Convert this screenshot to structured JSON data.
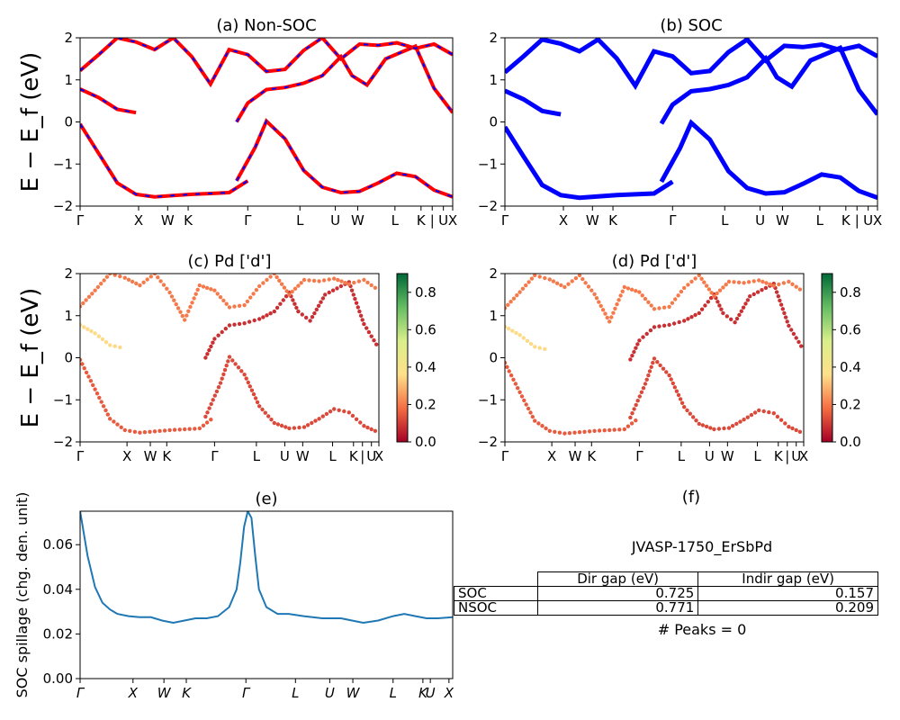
{
  "chart_data": [
    {
      "id": "a",
      "type": "line",
      "title": "(a) Non-SOC",
      "ylabel": "E − E_f (eV)",
      "ylim": [
        -2,
        2
      ],
      "yticks": [
        "2",
        "1",
        "0",
        "−1",
        "−2"
      ],
      "kpath": [
        "Γ",
        "X",
        "W",
        "K",
        "Γ",
        "L",
        "U",
        "W",
        "L",
        "K",
        "|",
        "U",
        "X"
      ],
      "style": "red solid with blue dashed overlay (two calculations coincide)",
      "series": [
        {
          "x": [
            0.0,
            0.05,
            0.1,
            0.15,
            0.2,
            0.25,
            0.3,
            0.35,
            0.4,
            0.45
          ],
          "y": [
            -0.05,
            -0.75,
            -1.45,
            -1.72,
            -1.78,
            -1.75,
            -1.72,
            -1.7,
            -1.68,
            -1.4
          ]
        },
        {
          "x": [
            0.42,
            0.47,
            0.5,
            0.55,
            0.6,
            0.65,
            0.7,
            0.75,
            0.8,
            0.85,
            0.9,
            0.95,
            1.0
          ],
          "y": [
            -1.4,
            -0.6,
            0.02,
            -0.4,
            -1.15,
            -1.55,
            -1.68,
            -1.65,
            -1.45,
            -1.22,
            -1.3,
            -1.62,
            -1.78
          ]
        },
        {
          "x": [
            0.0,
            0.05,
            0.1,
            0.15
          ],
          "y": [
            0.78,
            0.58,
            0.3,
            0.22
          ]
        },
        {
          "x": [
            0.42,
            0.45,
            0.5,
            0.55,
            0.6,
            0.65,
            0.7,
            0.73,
            0.77,
            0.82,
            0.9,
            0.95,
            1.0
          ],
          "y": [
            0.0,
            0.45,
            0.77,
            0.82,
            0.92,
            1.1,
            1.55,
            1.1,
            0.88,
            1.5,
            1.8,
            0.8,
            0.22
          ]
        },
        {
          "x": [
            0.0,
            0.05,
            0.1,
            0.15,
            0.2,
            0.25,
            0.3,
            0.35,
            0.4,
            0.45,
            0.5,
            0.55,
            0.6,
            0.65,
            0.7,
            0.75,
            0.8,
            0.85,
            0.9,
            0.95,
            1.0
          ],
          "y": [
            1.22,
            1.6,
            2.0,
            1.9,
            1.72,
            2.0,
            1.55,
            0.9,
            1.72,
            1.6,
            1.2,
            1.25,
            1.7,
            2.0,
            1.5,
            1.85,
            1.82,
            1.88,
            1.75,
            1.85,
            1.6
          ]
        }
      ]
    },
    {
      "id": "b",
      "type": "line",
      "title": "(b) SOC",
      "ylim": [
        -2,
        2
      ],
      "yticks": [
        "2",
        "1",
        "0",
        "−1",
        "−2"
      ],
      "kpath": [
        "Γ",
        "X",
        "W",
        "K",
        "Γ",
        "L",
        "U",
        "W",
        "L",
        "K",
        "|",
        "U",
        "X"
      ],
      "style": "blue thick",
      "series": [
        {
          "x": [
            0.0,
            0.05,
            0.1,
            0.15,
            0.2,
            0.25,
            0.3,
            0.35,
            0.4,
            0.45
          ],
          "y": [
            -0.12,
            -0.82,
            -1.5,
            -1.74,
            -1.8,
            -1.77,
            -1.74,
            -1.72,
            -1.7,
            -1.42
          ]
        },
        {
          "x": [
            0.42,
            0.47,
            0.5,
            0.55,
            0.6,
            0.65,
            0.7,
            0.75,
            0.8,
            0.85,
            0.9,
            0.95,
            1.0
          ],
          "y": [
            -1.42,
            -0.62,
            -0.02,
            -0.42,
            -1.17,
            -1.57,
            -1.7,
            -1.67,
            -1.47,
            -1.25,
            -1.32,
            -1.64,
            -1.8
          ]
        },
        {
          "x": [
            0.0,
            0.05,
            0.1,
            0.15
          ],
          "y": [
            0.74,
            0.54,
            0.26,
            0.18
          ]
        },
        {
          "x": [
            0.42,
            0.45,
            0.5,
            0.55,
            0.6,
            0.65,
            0.7,
            0.73,
            0.77,
            0.82,
            0.9,
            0.95,
            1.0
          ],
          "y": [
            -0.04,
            0.41,
            0.73,
            0.78,
            0.88,
            1.06,
            1.51,
            1.06,
            0.84,
            1.46,
            1.76,
            0.76,
            0.18
          ]
        },
        {
          "x": [
            0.0,
            0.05,
            0.1,
            0.15,
            0.2,
            0.25,
            0.3,
            0.35,
            0.4,
            0.45,
            0.5,
            0.55,
            0.6,
            0.65,
            0.7,
            0.75,
            0.8,
            0.85,
            0.9,
            0.95,
            1.0
          ],
          "y": [
            1.18,
            1.56,
            1.96,
            1.86,
            1.68,
            1.96,
            1.51,
            0.86,
            1.68,
            1.56,
            1.16,
            1.21,
            1.66,
            1.96,
            1.46,
            1.81,
            1.78,
            1.84,
            1.71,
            1.81,
            1.56
          ]
        }
      ]
    },
    {
      "id": "c",
      "type": "scatter",
      "title": "(c)  Pd ['d']",
      "ylabel": "E − E_f (eV)",
      "ylim": [
        -2,
        2
      ],
      "yticks": [
        "2",
        "1",
        "0",
        "−1",
        "−2"
      ],
      "kpath": [
        "Γ",
        "X",
        "W",
        "K",
        "Γ",
        "L",
        "U",
        "W",
        "L",
        "K",
        "|",
        "U",
        "X"
      ],
      "colorbar": {
        "cmap": "RdYlGn",
        "range": [
          0,
          0.9
        ],
        "ticks": [
          "0.0",
          "0.2",
          "0.4",
          "0.6",
          "0.8"
        ]
      },
      "series": [
        {
          "weight": 0.15,
          "x": [
            0.0,
            0.05,
            0.1,
            0.15,
            0.2,
            0.25,
            0.3,
            0.35,
            0.4,
            0.45
          ],
          "y": [
            -0.05,
            -0.75,
            -1.45,
            -1.72,
            -1.78,
            -1.75,
            -1.72,
            -1.7,
            -1.68,
            -1.4
          ]
        },
        {
          "weight": 0.12,
          "x": [
            0.42,
            0.47,
            0.5,
            0.55,
            0.6,
            0.65,
            0.7,
            0.75,
            0.8,
            0.85,
            0.9,
            0.95,
            1.0
          ],
          "y": [
            -1.4,
            -0.6,
            0.02,
            -0.4,
            -1.15,
            -1.55,
            -1.68,
            -1.65,
            -1.45,
            -1.22,
            -1.3,
            -1.62,
            -1.78
          ]
        },
        {
          "weight": 0.35,
          "x": [
            0.0,
            0.05,
            0.1,
            0.15
          ],
          "y": [
            0.78,
            0.58,
            0.3,
            0.22
          ]
        },
        {
          "weight": 0.08,
          "x": [
            0.42,
            0.45,
            0.5,
            0.55,
            0.6,
            0.65,
            0.7,
            0.73,
            0.77,
            0.82,
            0.9,
            0.95,
            1.0
          ],
          "y": [
            0.0,
            0.45,
            0.77,
            0.82,
            0.92,
            1.1,
            1.55,
            1.1,
            0.88,
            1.5,
            1.8,
            0.8,
            0.22
          ]
        },
        {
          "weight": 0.2,
          "x": [
            0.0,
            0.05,
            0.1,
            0.15,
            0.2,
            0.25,
            0.3,
            0.35,
            0.4,
            0.45,
            0.5,
            0.55,
            0.6,
            0.65,
            0.7,
            0.75,
            0.8,
            0.85,
            0.9,
            0.95,
            1.0
          ],
          "y": [
            1.22,
            1.6,
            2.0,
            1.9,
            1.72,
            2.0,
            1.55,
            0.9,
            1.72,
            1.6,
            1.2,
            1.25,
            1.7,
            2.0,
            1.5,
            1.85,
            1.82,
            1.88,
            1.75,
            1.85,
            1.6
          ]
        }
      ]
    },
    {
      "id": "d",
      "type": "scatter",
      "title": "(d) Pd ['d']",
      "ylim": [
        -2,
        2
      ],
      "yticks": [
        "2",
        "1",
        "0",
        "−1",
        "−2"
      ],
      "kpath": [
        "Γ",
        "X",
        "W",
        "K",
        "Γ",
        "L",
        "U",
        "W",
        "L",
        "K",
        "|",
        "U",
        "X"
      ],
      "colorbar": {
        "cmap": "RdYlGn",
        "range": [
          0,
          0.9
        ],
        "ticks": [
          "0.0",
          "0.2",
          "0.4",
          "0.6",
          "0.8"
        ]
      },
      "series": [
        {
          "weight": 0.15,
          "x": [
            0.0,
            0.05,
            0.1,
            0.15,
            0.2,
            0.25,
            0.3,
            0.35,
            0.4,
            0.45
          ],
          "y": [
            -0.12,
            -0.82,
            -1.5,
            -1.74,
            -1.8,
            -1.77,
            -1.74,
            -1.72,
            -1.7,
            -1.42
          ]
        },
        {
          "weight": 0.12,
          "x": [
            0.42,
            0.47,
            0.5,
            0.55,
            0.6,
            0.65,
            0.7,
            0.75,
            0.8,
            0.85,
            0.9,
            0.95,
            1.0
          ],
          "y": [
            -1.42,
            -0.62,
            -0.02,
            -0.42,
            -1.17,
            -1.57,
            -1.7,
            -1.67,
            -1.47,
            -1.25,
            -1.32,
            -1.64,
            -1.8
          ]
        },
        {
          "weight": 0.35,
          "x": [
            0.0,
            0.05,
            0.1,
            0.15
          ],
          "y": [
            0.74,
            0.54,
            0.26,
            0.18
          ]
        },
        {
          "weight": 0.08,
          "x": [
            0.42,
            0.45,
            0.5,
            0.55,
            0.6,
            0.65,
            0.7,
            0.73,
            0.77,
            0.82,
            0.9,
            0.95,
            1.0
          ],
          "y": [
            -0.04,
            0.41,
            0.73,
            0.78,
            0.88,
            1.06,
            1.51,
            1.06,
            0.84,
            1.46,
            1.76,
            0.76,
            0.18
          ]
        },
        {
          "weight": 0.2,
          "x": [
            0.0,
            0.05,
            0.1,
            0.15,
            0.2,
            0.25,
            0.3,
            0.35,
            0.4,
            0.45,
            0.5,
            0.55,
            0.6,
            0.65,
            0.7,
            0.75,
            0.8,
            0.85,
            0.9,
            0.95,
            1.0
          ],
          "y": [
            1.18,
            1.56,
            1.96,
            1.86,
            1.68,
            1.96,
            1.51,
            0.86,
            1.68,
            1.56,
            1.16,
            1.21,
            1.66,
            1.96,
            1.46,
            1.81,
            1.78,
            1.84,
            1.71,
            1.81,
            1.56
          ]
        }
      ]
    },
    {
      "id": "e",
      "type": "line",
      "title": "(e)",
      "ylabel": "SOC spillage (chg. den. unit)",
      "ylim": [
        0,
        0.075
      ],
      "yticks": [
        "0.06",
        "0.04",
        "0.02",
        "0.00"
      ],
      "kpath": [
        "Γ",
        "X",
        "W",
        "K",
        "Γ",
        "L",
        "U",
        "W",
        "L",
        "K",
        "U",
        "X"
      ],
      "series": [
        {
          "x": [
            0.0,
            0.02,
            0.04,
            0.06,
            0.08,
            0.1,
            0.13,
            0.16,
            0.19,
            0.22,
            0.25,
            0.28,
            0.31,
            0.34,
            0.37,
            0.4,
            0.42,
            0.43,
            0.44,
            0.45,
            0.46,
            0.47,
            0.48,
            0.5,
            0.53,
            0.56,
            0.6,
            0.65,
            0.7,
            0.73,
            0.76,
            0.8,
            0.84,
            0.87,
            0.9,
            0.93,
            0.96,
            1.0
          ],
          "y": [
            0.075,
            0.055,
            0.041,
            0.034,
            0.031,
            0.029,
            0.028,
            0.0275,
            0.0275,
            0.026,
            0.025,
            0.026,
            0.027,
            0.027,
            0.028,
            0.032,
            0.04,
            0.052,
            0.068,
            0.075,
            0.072,
            0.055,
            0.04,
            0.032,
            0.029,
            0.029,
            0.028,
            0.027,
            0.027,
            0.026,
            0.025,
            0.026,
            0.028,
            0.029,
            0.028,
            0.027,
            0.027,
            0.0275
          ]
        }
      ]
    }
  ],
  "panel_f": {
    "title": "(f)",
    "jid": "JVASP-1750_ErSbPd",
    "table": {
      "col_headers": [
        "Dir gap (eV)",
        "Indir gap (eV)"
      ],
      "rows": [
        {
          "label": "SOC",
          "dir": "0.725",
          "indir": "0.157"
        },
        {
          "label": "NSOC",
          "dir": "0.771",
          "indir": "0.209"
        }
      ]
    },
    "peaks": "# Peaks = 0"
  }
}
